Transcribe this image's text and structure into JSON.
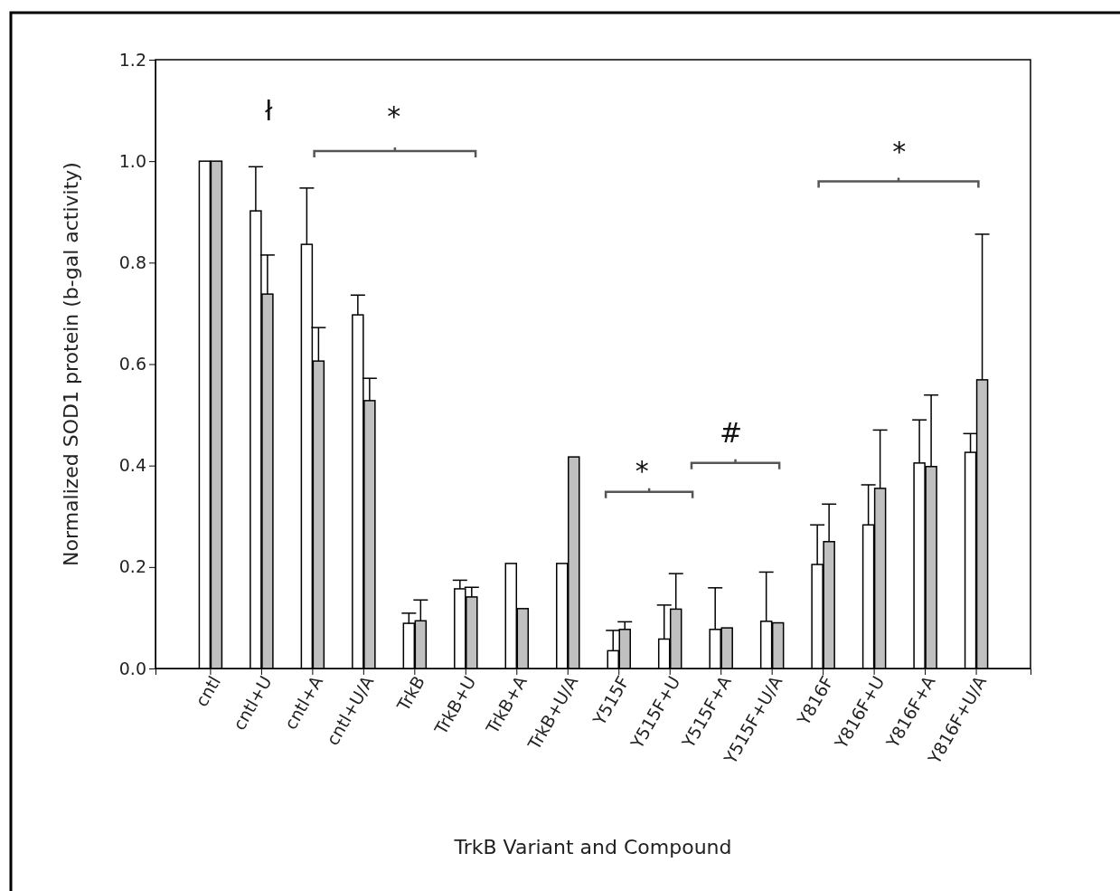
{
  "chart_data": {
    "type": "bar",
    "xlabel": "TrkB Variant and Compound",
    "ylabel": "Normalized SOD1 protein (b-gal activity)",
    "categories": [
      "cntl",
      "cntl+U",
      "cntl+A",
      "cntl+U/A",
      "TrkB",
      "TrkB+U",
      "TrkB+A",
      "TrkB+U/A",
      "Y515F",
      "Y515F+U",
      "Y515F+A",
      "Y515F+U/A",
      "Y816F",
      "Y816F+U",
      "Y816F+A",
      "Y816F+U/A"
    ],
    "series": [
      {
        "color": "#ffffff",
        "values": [
          1.0,
          0.902,
          0.836,
          0.697,
          0.089,
          0.157,
          0.207,
          0.207,
          0.035,
          0.058,
          0.077,
          0.093,
          0.205,
          0.283,
          0.405,
          0.426
        ],
        "errors": [
          null,
          [
            0.902,
            0.989
          ],
          [
            0.836,
            0.947
          ],
          [
            0.697,
            0.736
          ],
          [
            0.089,
            0.109
          ],
          [
            0.157,
            0.174
          ],
          null,
          null,
          [
            0.035,
            0.075
          ],
          [
            0.058,
            0.125
          ],
          [
            0.077,
            0.159
          ],
          [
            0.093,
            0.19
          ],
          [
            0.205,
            0.283
          ],
          [
            0.283,
            0.362
          ],
          [
            0.405,
            0.49
          ],
          [
            0.426,
            0.463
          ]
        ]
      },
      {
        "color": "#c0c0c0",
        "values": [
          1.0,
          0.738,
          0.606,
          0.528,
          0.094,
          0.141,
          0.118,
          0.417,
          0.077,
          0.117,
          0.08,
          0.09,
          0.25,
          0.355,
          0.398,
          0.569
        ],
        "errors": [
          null,
          [
            0.738,
            0.815
          ],
          [
            0.606,
            0.672
          ],
          [
            0.528,
            0.572
          ],
          [
            0.094,
            0.135
          ],
          [
            0.141,
            0.16
          ],
          null,
          null,
          [
            0.077,
            0.092
          ],
          [
            0.117,
            0.187
          ],
          null,
          null,
          [
            0.25,
            0.324
          ],
          [
            0.355,
            0.47
          ],
          [
            0.398,
            0.539
          ],
          [
            0.569,
            0.856
          ]
        ]
      }
    ],
    "ylim": [
      0,
      1.2
    ],
    "yticks": [
      {
        "value": 0,
        "label": "0.0"
      },
      {
        "value": 0.2,
        "label": "0.2"
      },
      {
        "value": 0.4,
        "label": "0.4"
      },
      {
        "value": 0.6,
        "label": "0.6"
      },
      {
        "value": 0.8,
        "label": "0.8"
      },
      {
        "value": 1,
        "label": "1.0"
      },
      {
        "value": 1.2,
        "label": "1.2"
      }
    ],
    "annotations": [
      "ł",
      "*",
      "*",
      "#",
      "*"
    ]
  }
}
